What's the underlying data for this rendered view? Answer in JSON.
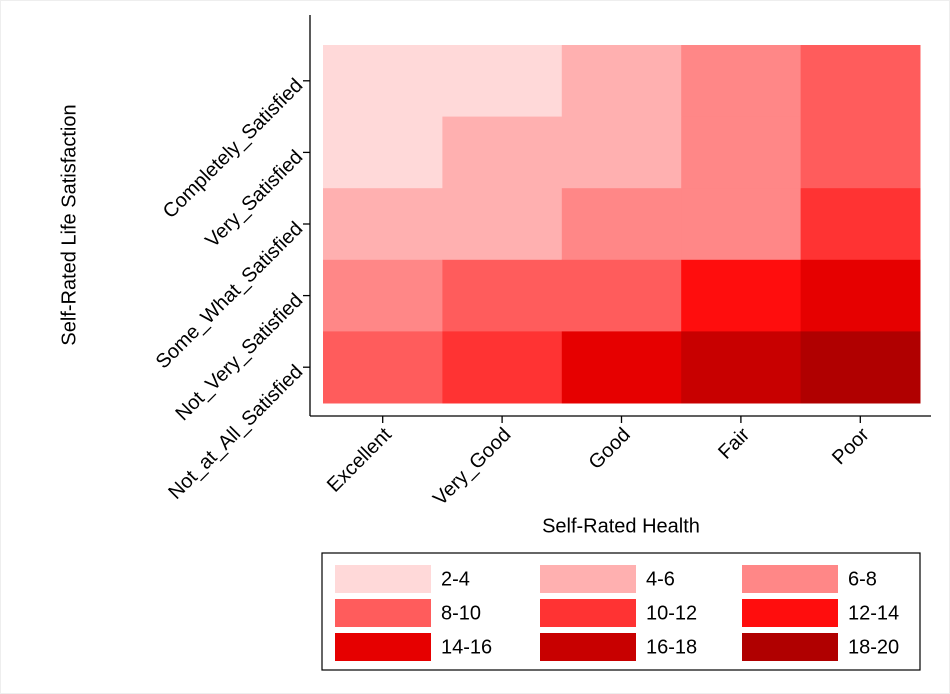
{
  "chart_data": {
    "type": "heatmap",
    "x_label": "Self-Rated Health",
    "y_label": "Self-Rated Life Satisfaction",
    "x_categories": [
      "Excellent",
      "Very_Good",
      "Good",
      "Fair",
      "Poor"
    ],
    "y_categories": [
      "Completely_Satisfied",
      "Very_Satisfied",
      "Some_What_Satisfied",
      "Not_Very_Satisfied",
      "Not_at_All_Satisfied"
    ],
    "values": [
      [
        3,
        3,
        5,
        7,
        9
      ],
      [
        3,
        5,
        5,
        7,
        9
      ],
      [
        5,
        5,
        7,
        7,
        11
      ],
      [
        7,
        9,
        9,
        13,
        15
      ],
      [
        9,
        11,
        15,
        17,
        19
      ]
    ],
    "legend": [
      {
        "label": "2-4",
        "range": [
          2,
          4
        ],
        "color": "#ffd9d9"
      },
      {
        "label": "4-6",
        "range": [
          4,
          6
        ],
        "color": "#ffb0b0"
      },
      {
        "label": "6-8",
        "range": [
          6,
          8
        ],
        "color": "#ff8787"
      },
      {
        "label": "8-10",
        "range": [
          8,
          10
        ],
        "color": "#ff5c5c"
      },
      {
        "label": "10-12",
        "range": [
          10,
          12
        ],
        "color": "#ff3333"
      },
      {
        "label": "12-14",
        "range": [
          12,
          14
        ],
        "color": "#ff0d0d"
      },
      {
        "label": "14-16",
        "range": [
          14,
          16
        ],
        "color": "#e60000"
      },
      {
        "label": "16-18",
        "range": [
          16,
          18
        ],
        "color": "#c80000"
      },
      {
        "label": "18-20",
        "range": [
          18,
          20
        ],
        "color": "#b00000"
      }
    ]
  }
}
